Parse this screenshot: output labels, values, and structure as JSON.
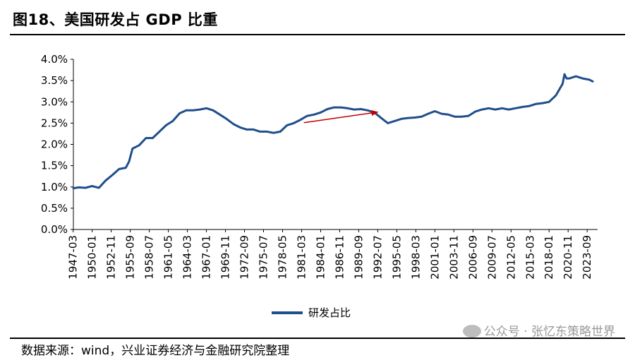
{
  "header": {
    "title": "图18、美国研发占 GDP 比重"
  },
  "footer": {
    "source": "数据来源：wind，兴业证券经济与金融研究院整理"
  },
  "watermark": {
    "text": "公众号 · 张忆东策略世界"
  },
  "chart_data": {
    "type": "line",
    "title": "",
    "xlabel": "",
    "ylabel": "",
    "ylim": [
      0,
      0.04
    ],
    "y_ticks": [
      "0.0%",
      "0.5%",
      "1.0%",
      "1.5%",
      "2.0%",
      "2.5%",
      "3.0%",
      "3.5%",
      "4.0%"
    ],
    "x_ticks": [
      "1947-03",
      "1950-01",
      "1952-11",
      "1955-09",
      "1958-07",
      "1961-05",
      "1964-03",
      "1967-01",
      "1969-11",
      "1972-09",
      "1975-07",
      "1978-05",
      "1981-03",
      "1984-01",
      "1986-11",
      "1989-09",
      "1992-07",
      "1995-05",
      "1998-03",
      "2001-01",
      "2003-11",
      "2006-09",
      "2009-07",
      "2012-05",
      "2015-03",
      "2018-01",
      "2020-11",
      "2023-09"
    ],
    "grid": false,
    "legend": "bottom",
    "series": [
      {
        "name": "研发占比",
        "color": "#1f4e8c",
        "x": [
          1947.2,
          1948.0,
          1949.0,
          1950.0,
          1950.5,
          1951.0,
          1952.0,
          1953.0,
          1954.0,
          1955.0,
          1955.5,
          1956.0,
          1957.0,
          1958.0,
          1959.0,
          1960.0,
          1961.0,
          1962.0,
          1963.0,
          1964.0,
          1965.0,
          1966.0,
          1967.0,
          1968.0,
          1969.0,
          1970.0,
          1971.0,
          1972.0,
          1973.0,
          1974.0,
          1975.0,
          1976.0,
          1977.0,
          1978.0,
          1979.0,
          1980.0,
          1981.0,
          1982.0,
          1983.0,
          1984.0,
          1985.0,
          1986.0,
          1987.0,
          1988.0,
          1989.0,
          1990.0,
          1991.0,
          1992.0,
          1993.0,
          1994.0,
          1995.0,
          1996.0,
          1997.0,
          1998.0,
          1999.0,
          2000.0,
          2001.0,
          2002.0,
          2003.0,
          2004.0,
          2005.0,
          2006.0,
          2007.0,
          2008.0,
          2009.0,
          2010.0,
          2011.0,
          2012.0,
          2013.0,
          2014.0,
          2015.0,
          2016.0,
          2017.0,
          2018.0,
          2019.0,
          2020.0,
          2020.3,
          2020.6,
          2021.0,
          2022.0,
          2023.0,
          2024.0,
          2024.5
        ],
        "values": [
          0.0097,
          0.0099,
          0.0098,
          0.0102,
          0.01,
          0.0098,
          0.0115,
          0.0128,
          0.0142,
          0.0145,
          0.016,
          0.019,
          0.0198,
          0.0215,
          0.0215,
          0.023,
          0.0245,
          0.0255,
          0.0273,
          0.028,
          0.028,
          0.0282,
          0.0285,
          0.028,
          0.027,
          0.026,
          0.0248,
          0.024,
          0.0235,
          0.0235,
          0.023,
          0.023,
          0.0227,
          0.023,
          0.0245,
          0.025,
          0.0258,
          0.0267,
          0.027,
          0.0275,
          0.0283,
          0.0287,
          0.0287,
          0.0285,
          0.0282,
          0.0283,
          0.028,
          0.0275,
          0.0262,
          0.025,
          0.0255,
          0.026,
          0.0262,
          0.0263,
          0.0265,
          0.0272,
          0.0278,
          0.0272,
          0.027,
          0.0265,
          0.0265,
          0.0267,
          0.0277,
          0.0282,
          0.0285,
          0.0282,
          0.0285,
          0.0282,
          0.0285,
          0.0288,
          0.029,
          0.0295,
          0.0297,
          0.03,
          0.0315,
          0.0342,
          0.0365,
          0.0355,
          0.0355,
          0.036,
          0.0355,
          0.0352,
          0.0348
        ]
      }
    ],
    "annotations": [
      {
        "type": "arrow",
        "color": "#c00000",
        "from": [
          1981.5,
          0.0251
        ],
        "to": [
          1992.5,
          0.0276
        ]
      }
    ]
  }
}
